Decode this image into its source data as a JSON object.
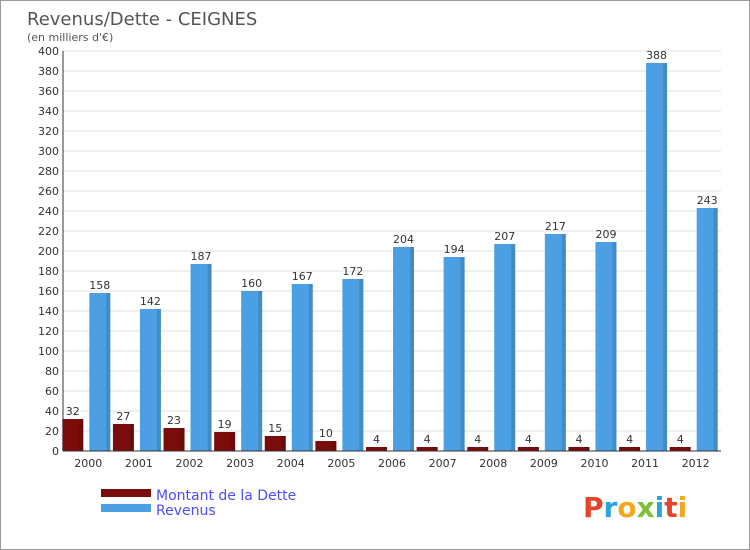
{
  "chart_data": {
    "type": "bar",
    "title": "Revenus/Dette - CEIGNES",
    "subtitle": "(en milliers d'€)",
    "categories": [
      "2000",
      "2001",
      "2002",
      "2003",
      "2004",
      "2005",
      "2006",
      "2007",
      "2008",
      "2009",
      "2010",
      "2011",
      "2012"
    ],
    "series": [
      {
        "name": "Montant de la Dette",
        "color": "#7a0c0c",
        "values": [
          32,
          27,
          23,
          19,
          15,
          10,
          4,
          4,
          4,
          4,
          4,
          4,
          4
        ]
      },
      {
        "name": "Revenus",
        "color": "#4c9fe2",
        "values": [
          158,
          142,
          187,
          160,
          167,
          172,
          204,
          194,
          207,
          217,
          209,
          388,
          243
        ]
      }
    ],
    "ylim": [
      0,
      400
    ],
    "yticks": [
      0,
      20,
      40,
      60,
      80,
      100,
      120,
      140,
      160,
      180,
      200,
      220,
      240,
      260,
      280,
      300,
      320,
      340,
      360,
      380,
      400
    ],
    "grid": true,
    "legend": "bottom-left"
  },
  "brand": {
    "text": "Proxiti",
    "letters": [
      "P",
      "r",
      "o",
      "x",
      "i",
      "t",
      "i"
    ],
    "colors": [
      "#e8442c",
      "#2aa5dc",
      "#f2a81d",
      "#7dbd3a",
      "#2aa5dc",
      "#e8442c",
      "#f2a81d"
    ]
  }
}
